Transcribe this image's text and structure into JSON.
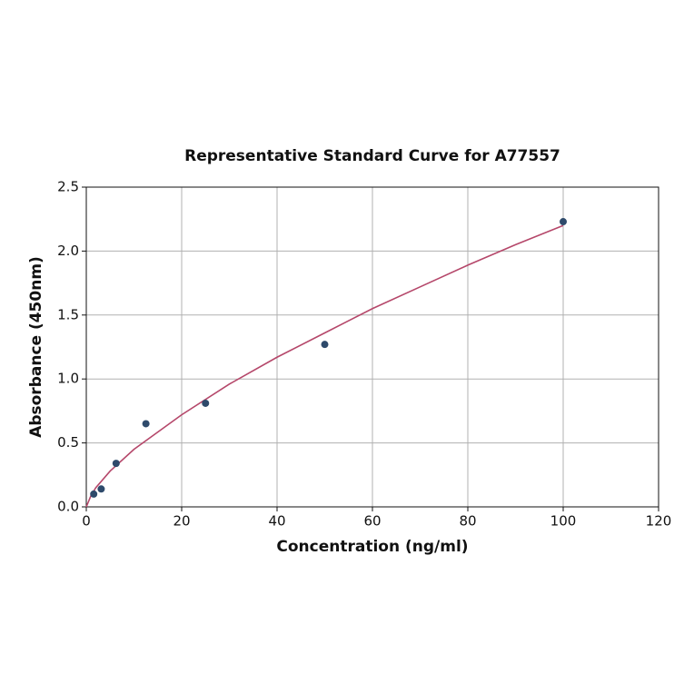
{
  "chart_data": {
    "type": "scatter",
    "title": "Representative Standard Curve for A77557",
    "x_label": "Concentration (ng/ml)",
    "y_label": "Absorbance (450nm)",
    "x": [
      1.56,
      3.125,
      6.25,
      12.5,
      25,
      50,
      100
    ],
    "values": [
      0.1,
      0.14,
      0.34,
      0.65,
      0.81,
      1.27,
      2.23
    ],
    "color": "#2e4a6b",
    "curve": {
      "x": [
        0,
        1,
        2,
        5,
        10,
        20,
        30,
        40,
        50,
        60,
        70,
        80,
        90,
        100
      ],
      "values": [
        0.0,
        0.09,
        0.15,
        0.28,
        0.45,
        0.72,
        0.96,
        1.17,
        1.36,
        1.55,
        1.72,
        1.89,
        2.05,
        2.2
      ],
      "color": "#b5476a"
    },
    "xlim": [
      0,
      120
    ],
    "xticks": [
      0,
      20,
      40,
      60,
      80,
      100,
      120
    ],
    "ylim": [
      0,
      2.5
    ],
    "yticks": [
      {
        "value": 0,
        "label": "0.0"
      },
      0.5,
      {
        "value": 1,
        "label": "1.0"
      },
      1.5,
      {
        "value": 2,
        "label": "2.0"
      },
      2.5
    ],
    "grid": true
  }
}
